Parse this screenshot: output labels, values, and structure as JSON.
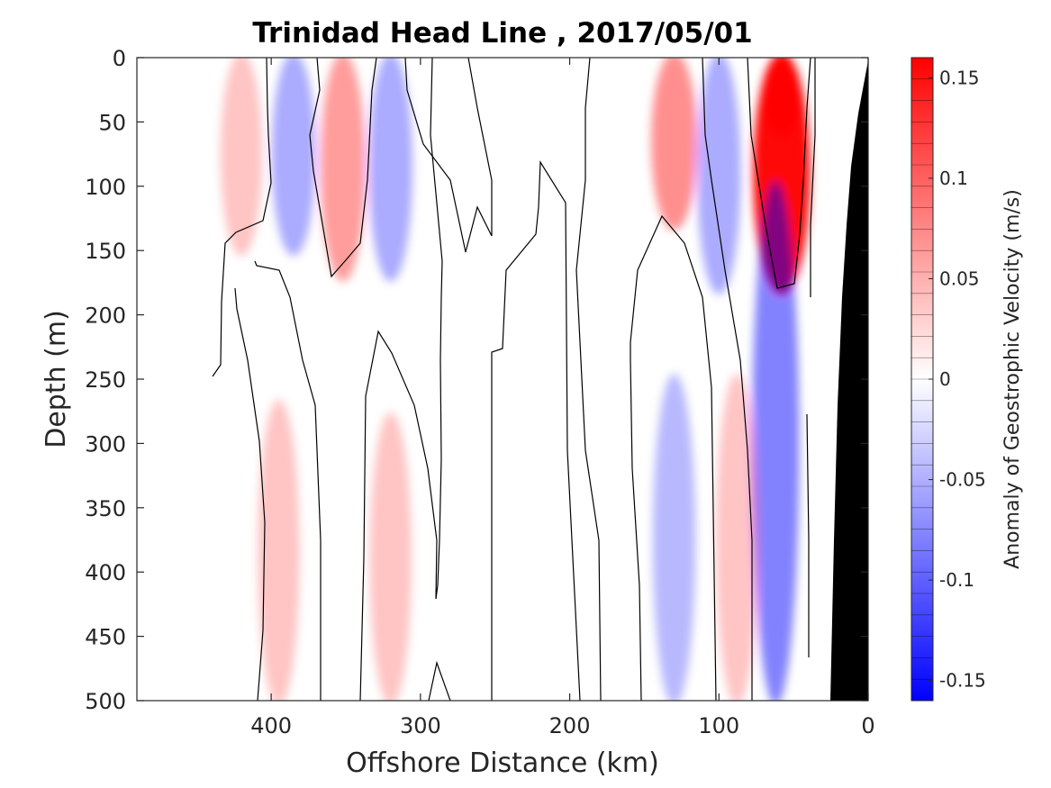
{
  "chart_data": {
    "type": "contour",
    "title": "Trinidad Head Line , 2017/05/01",
    "xlabel": "Offshore Distance (km)",
    "ylabel": "Depth (m)",
    "x_reversed": true,
    "y_reversed": true,
    "xlim": [
      0,
      490
    ],
    "ylim": [
      0,
      500
    ],
    "x_ticks": [
      400,
      300,
      200,
      100,
      0
    ],
    "y_ticks": [
      0,
      50,
      100,
      150,
      200,
      250,
      300,
      350,
      400,
      450,
      500
    ],
    "colorbar": {
      "label": "Anomaly of Geostrophic Velocity (m/s)",
      "range": [
        -0.16,
        0.16
      ],
      "levels": 30,
      "ticks": [
        0.15,
        0.1,
        0.05,
        0,
        -0.05,
        -0.1,
        -0.15
      ],
      "low_color": "#0000ff",
      "mid_color": "#ffffff",
      "high_color": "#ff0000"
    },
    "bathymetry_color": "#000000",
    "zero_contour_color": "#000000",
    "features": [
      {
        "label": "positive",
        "x_km": 58,
        "depth_range": [
          0,
          180
        ],
        "peak_value": 0.16
      },
      {
        "label": "positive",
        "x_km": 130,
        "depth_range": [
          0,
          130
        ],
        "peak_value": 0.06
      },
      {
        "label": "positive",
        "x_km": 352,
        "depth_range": [
          0,
          170
        ],
        "peak_value": 0.05
      },
      {
        "label": "positive",
        "x_km": 420,
        "depth_range": [
          0,
          150
        ],
        "peak_value": 0.02
      },
      {
        "label": "negative",
        "x_km": 62,
        "depth_range": [
          100,
          500
        ],
        "peak_value": -0.07
      },
      {
        "label": "negative",
        "x_km": 100,
        "depth_range": [
          0,
          180
        ],
        "peak_value": -0.04
      },
      {
        "label": "negative",
        "x_km": 320,
        "depth_range": [
          0,
          170
        ],
        "peak_value": -0.04
      },
      {
        "label": "negative",
        "x_km": 385,
        "depth_range": [
          0,
          150
        ],
        "peak_value": -0.04
      },
      {
        "label": "negative",
        "x_km": 130,
        "depth_range": [
          250,
          500
        ],
        "peak_value": -0.03
      },
      {
        "label": "positive",
        "x_km": 395,
        "depth_range": [
          270,
          500
        ],
        "peak_value": 0.02
      },
      {
        "label": "positive",
        "x_km": 320,
        "depth_range": [
          280,
          500
        ],
        "peak_value": 0.02
      },
      {
        "label": "positive",
        "x_km": 88,
        "depth_range": [
          250,
          500
        ],
        "peak_value": 0.02
      }
    ]
  }
}
